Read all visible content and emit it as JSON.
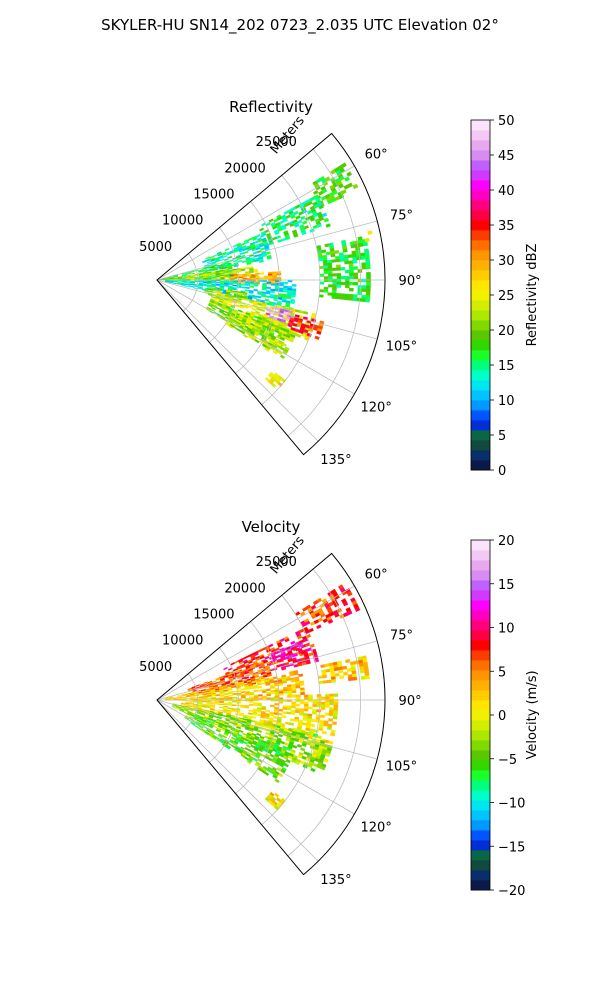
{
  "figure": {
    "title": "SKYLER-HU  SN14_202  0723_2.035 UTC Elevation 02°"
  },
  "colors": {
    "axis": "#000000",
    "grid": "#bdbdbd",
    "background": "#ffffff"
  },
  "chart_data": [
    {
      "type": "heatmap",
      "subtype": "radar-ppi-sector",
      "title": "Reflectivity",
      "range_axis_label": "Meters",
      "range_ticks": [
        "5000",
        "10000",
        "15000",
        "20000",
        "25000"
      ],
      "range_tick_values": [
        5000,
        10000,
        15000,
        20000,
        25000
      ],
      "range_max": 28000,
      "azimuth_range_deg": [
        50,
        140
      ],
      "azimuth_ticks": [
        "60°",
        "75°",
        "90°",
        "105°",
        "120°",
        "135°"
      ],
      "azimuth_tick_values": [
        60,
        75,
        90,
        105,
        120,
        135
      ],
      "grid": true,
      "colorbar": {
        "label": "Reflectivity dBZ",
        "min": 0,
        "max": 50,
        "ticks": [
          "0",
          "5",
          "10",
          "15",
          "20",
          "25",
          "30",
          "35",
          "40",
          "45",
          "50"
        ],
        "tick_values": [
          0,
          5,
          10,
          15,
          20,
          25,
          30,
          35,
          40,
          45,
          50
        ],
        "colors": [
          "#0c1a4a",
          "#0a2e6a",
          "#0f4a3c",
          "#0a6646",
          "#002fd6",
          "#0055ff",
          "#0099ff",
          "#00c3ff",
          "#00e6f0",
          "#00ffc8",
          "#00ff7a",
          "#1aff2a",
          "#33d700",
          "#5ac800",
          "#82d900",
          "#aee600",
          "#d2ee00",
          "#f0f000",
          "#ffe600",
          "#ffcc00",
          "#ffb000",
          "#ff9600",
          "#ff6f00",
          "#ff3c00",
          "#ff0000",
          "#ff0044",
          "#ff007e",
          "#ff00c0",
          "#ff00ff",
          "#d238ff",
          "#c060ff",
          "#d88cf0",
          "#e8a8f0",
          "#f4c8f4",
          "#fbe4fb"
        ],
        "location": "right"
      },
      "echo_regions": [
        {
          "az": [
            58,
            66
          ],
          "r": [
            22000,
            27000
          ],
          "value": 18
        },
        {
          "az": [
            62,
            72
          ],
          "r": [
            14000,
            22000
          ],
          "value": 16
        },
        {
          "az": [
            66,
            80
          ],
          "r": [
            6000,
            14000
          ],
          "value": 14
        },
        {
          "az": [
            76,
            90
          ],
          "r": [
            0,
            9000
          ],
          "value": 17
        },
        {
          "az": [
            82,
            90
          ],
          "r": [
            1000,
            12000
          ],
          "value": 22
        },
        {
          "az": [
            86,
            92
          ],
          "r": [
            9000,
            15000
          ],
          "value": 30
        },
        {
          "az": [
            90,
            102
          ],
          "r": [
            1000,
            17000
          ],
          "value": 13
        },
        {
          "az": [
            98,
            106
          ],
          "r": [
            6000,
            11000
          ],
          "value": 21
        },
        {
          "az": [
            102,
            112
          ],
          "r": [
            7000,
            20000
          ],
          "value": 24
        },
        {
          "az": [
            103,
            108
          ],
          "r": [
            14000,
            18000
          ],
          "value": 45
        },
        {
          "az": [
            104,
            110
          ],
          "r": [
            17000,
            21000
          ],
          "value": 34
        },
        {
          "az": [
            110,
            120
          ],
          "r": [
            7000,
            17000
          ],
          "value": 20
        },
        {
          "az": [
            112,
            122
          ],
          "r": [
            10000,
            18000
          ],
          "value": 22
        },
        {
          "az": [
            78,
            96
          ],
          "r": [
            20000,
            26000
          ],
          "value": 17
        },
        {
          "az": [
            77,
            79
          ],
          "r": [
            26000,
            27000
          ],
          "value": 24
        },
        {
          "az": [
            128,
            132
          ],
          "r": [
            18000,
            20000
          ],
          "value": 26
        }
      ]
    },
    {
      "type": "heatmap",
      "subtype": "radar-ppi-sector",
      "title": "Velocity",
      "range_axis_label": "Meters",
      "range_ticks": [
        "5000",
        "10000",
        "15000",
        "20000",
        "25000"
      ],
      "range_tick_values": [
        5000,
        10000,
        15000,
        20000,
        25000
      ],
      "range_max": 28000,
      "azimuth_range_deg": [
        50,
        140
      ],
      "azimuth_ticks": [
        "60°",
        "75°",
        "90°",
        "105°",
        "120°",
        "135°"
      ],
      "azimuth_tick_values": [
        60,
        75,
        90,
        105,
        120,
        135
      ],
      "grid": true,
      "colorbar": {
        "label": "Velocity (m/s)",
        "min": -20,
        "max": 20,
        "ticks": [
          "−20",
          "−15",
          "−10",
          "−5",
          "0",
          "5",
          "10",
          "15",
          "20"
        ],
        "tick_values": [
          -20,
          -15,
          -10,
          -5,
          0,
          5,
          10,
          15,
          20
        ],
        "colors": [
          "#0c1a4a",
          "#0a2e6a",
          "#0f4a3c",
          "#0a6646",
          "#002fd6",
          "#0055ff",
          "#0099ff",
          "#00c3ff",
          "#00e6f0",
          "#00ffc8",
          "#00ff7a",
          "#1aff2a",
          "#33d700",
          "#5ac800",
          "#82d900",
          "#aee600",
          "#d2ee00",
          "#f0f000",
          "#ffe600",
          "#ffcc00",
          "#ffb000",
          "#ff9600",
          "#ff6f00",
          "#ff3c00",
          "#ff0000",
          "#ff0044",
          "#ff007e",
          "#ff00c0",
          "#ff00ff",
          "#d238ff",
          "#c060ff",
          "#d88cf0",
          "#e8a8f0",
          "#f4c8f4",
          "#fbe4fb"
        ],
        "location": "right"
      },
      "echo_regions": [
        {
          "az": [
            58,
            66
          ],
          "r": [
            20000,
            27000
          ],
          "value": 7
        },
        {
          "az": [
            64,
            76
          ],
          "r": [
            9000,
            20000
          ],
          "value": 8
        },
        {
          "az": [
            70,
            80
          ],
          "r": [
            4000,
            14000
          ],
          "value": 6
        },
        {
          "az": [
            68,
            72
          ],
          "r": [
            15000,
            19000
          ],
          "value": 11
        },
        {
          "az": [
            78,
            90
          ],
          "r": [
            1000,
            18000
          ],
          "value": 2
        },
        {
          "az": [
            88,
            104
          ],
          "r": [
            3000,
            22000
          ],
          "value": 1
        },
        {
          "az": [
            102,
            114
          ],
          "r": [
            2000,
            22000
          ],
          "value": -3
        },
        {
          "az": [
            110,
            124
          ],
          "r": [
            4000,
            18000
          ],
          "value": -5
        },
        {
          "az": [
            78,
            84
          ],
          "r": [
            20000,
            26000
          ],
          "value": 2
        },
        {
          "az": [
            128,
            132
          ],
          "r": [
            18000,
            20000
          ],
          "value": 1
        }
      ]
    }
  ]
}
